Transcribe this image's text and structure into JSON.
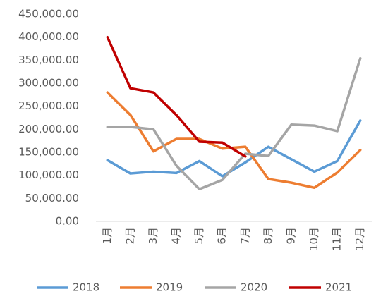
{
  "chart_data": {
    "type": "line",
    "categories": [
      "1月",
      "2月",
      "3月",
      "4月",
      "5月",
      "6月",
      "7月",
      "8月",
      "9月",
      "10月",
      "11月",
      "12月"
    ],
    "series": [
      {
        "name": "2018",
        "color": "#5b9bd5",
        "values": [
          133000,
          104000,
          108000,
          105000,
          131000,
          98000,
          128000,
          162000,
          135000,
          108000,
          131000,
          219000
        ]
      },
      {
        "name": "2019",
        "color": "#ed7d31",
        "values": [
          280000,
          231000,
          152000,
          179000,
          179000,
          158000,
          162000,
          92000,
          84000,
          73000,
          106000,
          155000
        ]
      },
      {
        "name": "2020",
        "color": "#a5a5a5",
        "values": [
          205000,
          205000,
          200000,
          121000,
          70000,
          90000,
          147000,
          142000,
          210000,
          208000,
          196000,
          354000
        ]
      },
      {
        "name": "2021",
        "color": "#c00000",
        "values": [
          400000,
          289000,
          280000,
          231000,
          173000,
          171000,
          141000,
          null,
          null,
          null,
          null,
          null
        ]
      }
    ],
    "ylim": [
      0,
      450000
    ],
    "yticks": [
      {
        "value": 0,
        "label": "0.00"
      },
      {
        "value": 50000,
        "label": "50,000.00"
      },
      {
        "value": 100000,
        "label": "100,000.00"
      },
      {
        "value": 150000,
        "label": "150,000.00"
      },
      {
        "value": 200000,
        "label": "200,000.00"
      },
      {
        "value": 250000,
        "label": "250,000.00"
      },
      {
        "value": 300000,
        "label": "300,000.00"
      },
      {
        "value": 350000,
        "label": "350,000.00"
      },
      {
        "value": 400000,
        "label": "400,000.00"
      },
      {
        "value": 450000,
        "label": "450,000.00"
      }
    ],
    "grid": false,
    "legend": "bottom"
  }
}
